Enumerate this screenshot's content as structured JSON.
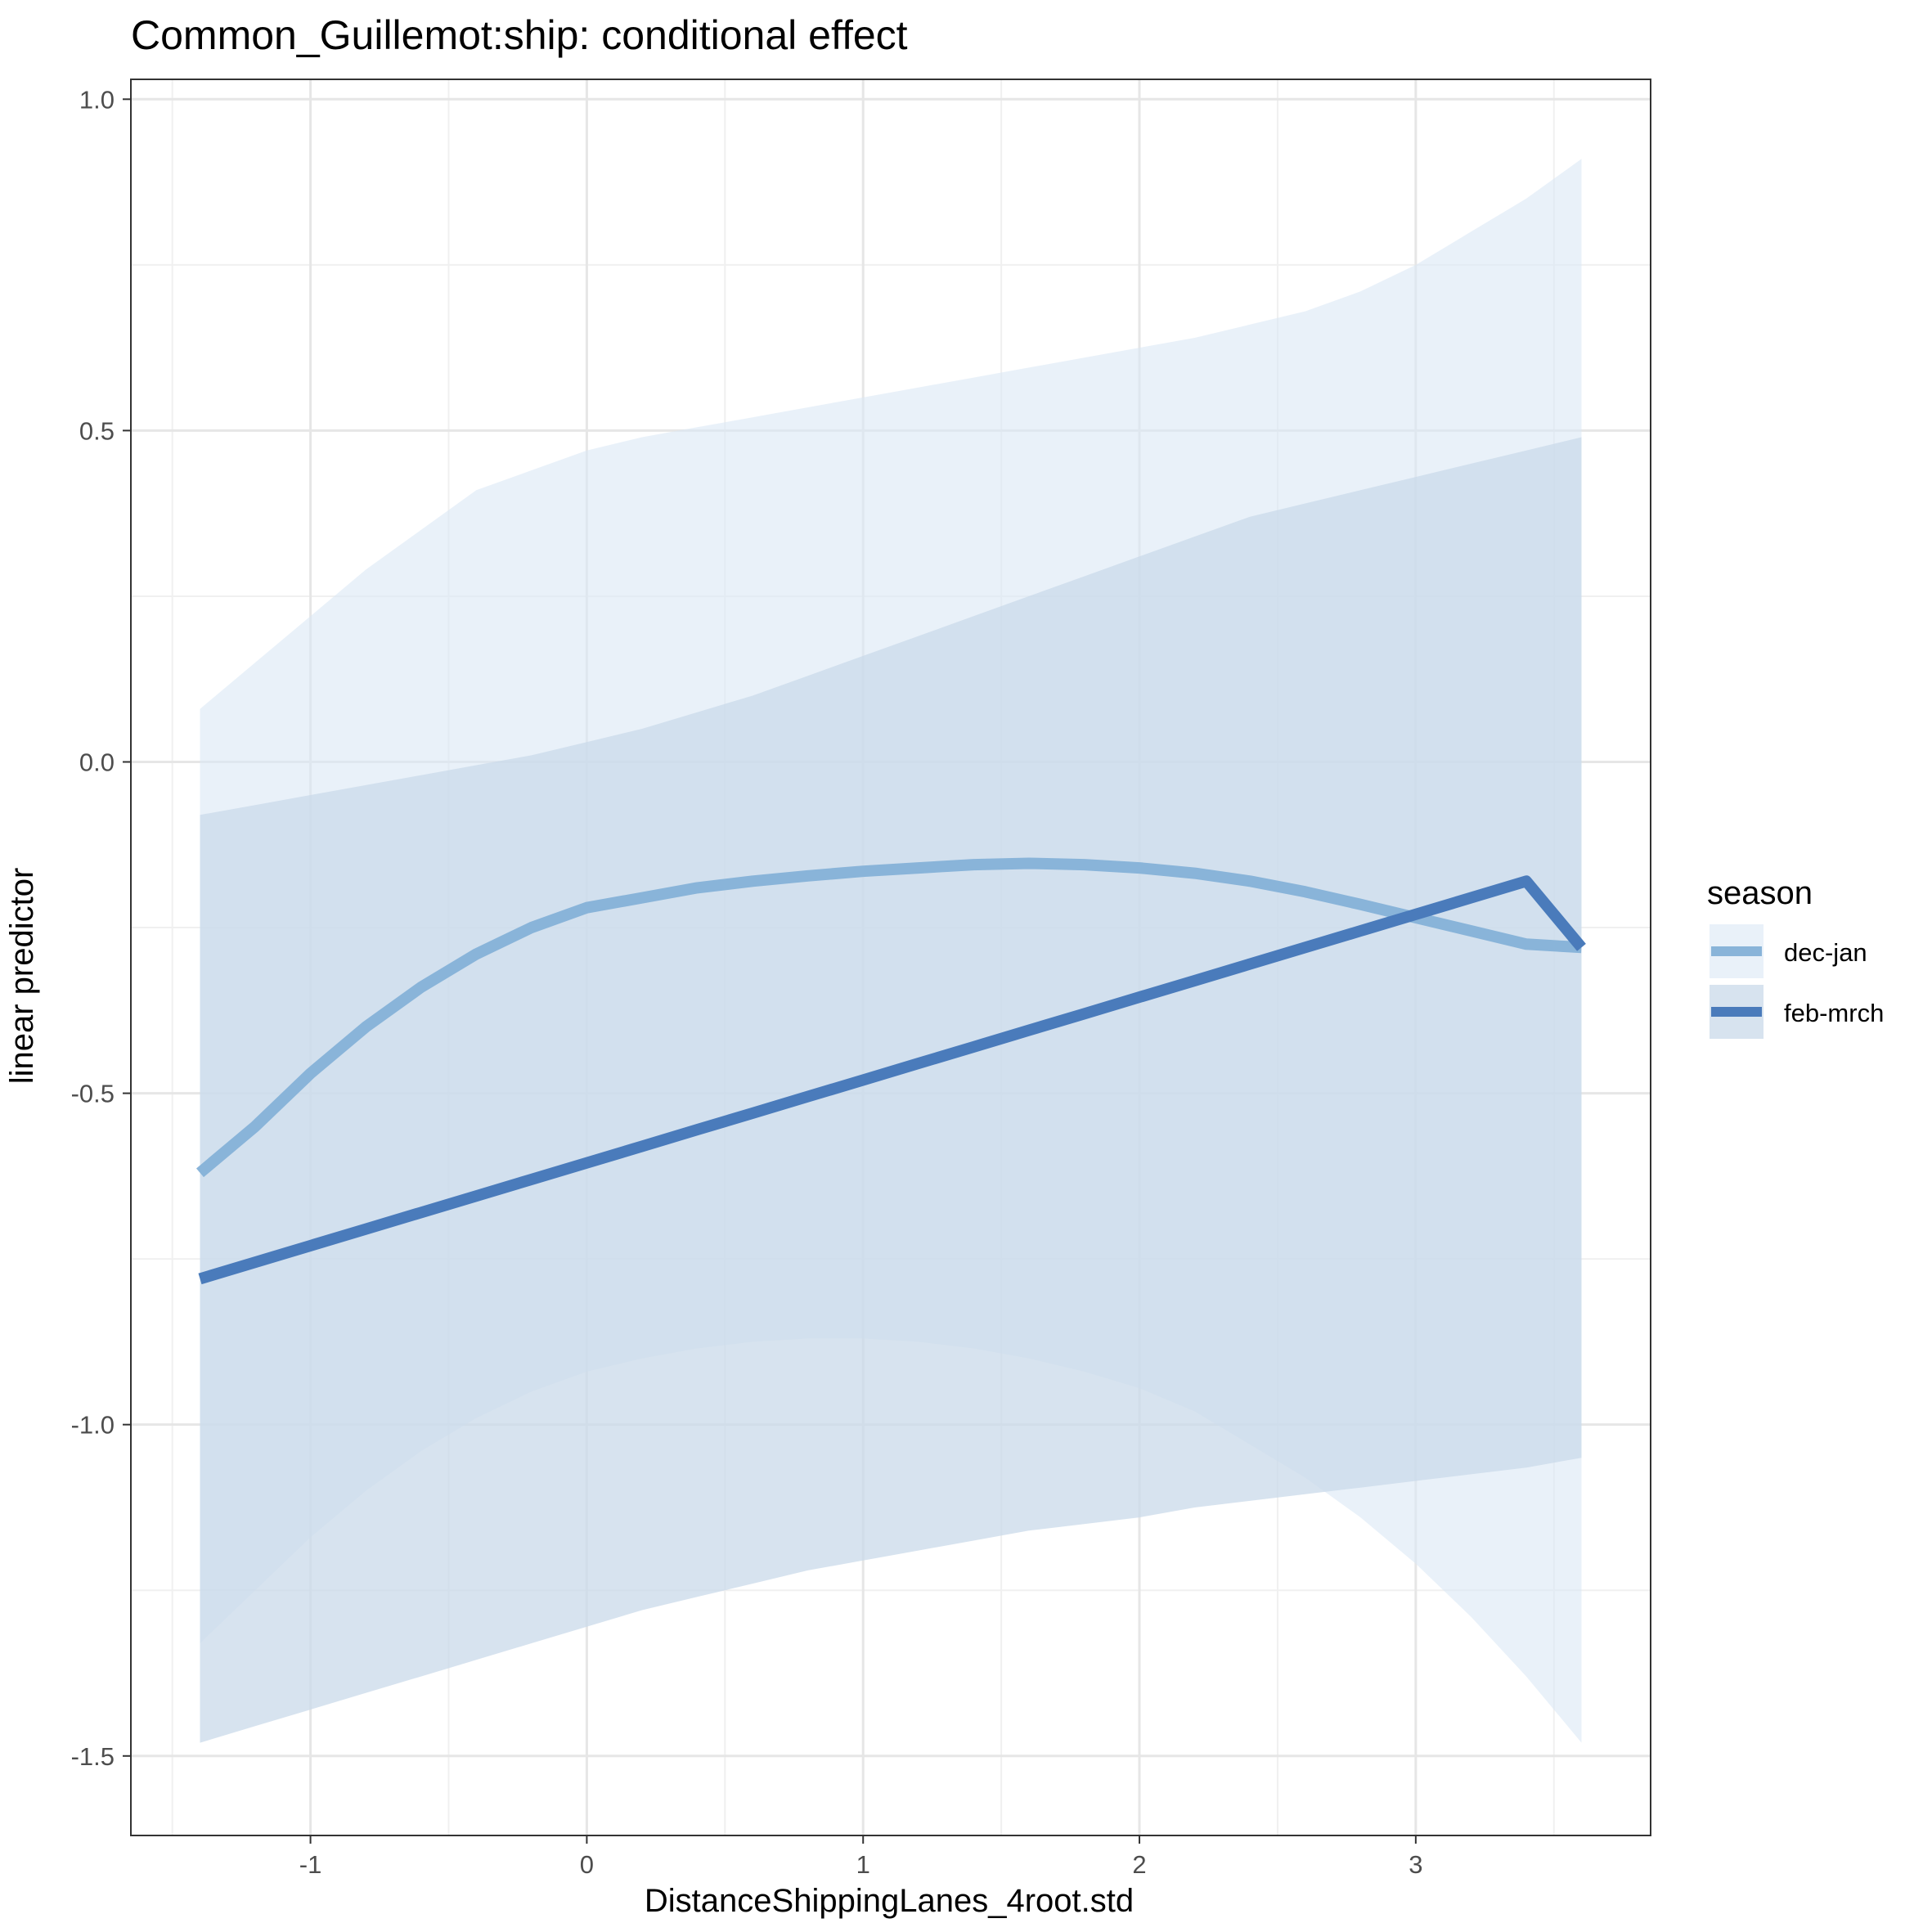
{
  "chart_data": {
    "type": "line",
    "title": "Common_Guillemot:ship: conditional effect",
    "xlabel": "DistanceShippingLanes_4root.std",
    "ylabel": "linear predictor",
    "xlim": [
      -1.65,
      3.85
    ],
    "ylim": [
      -1.62,
      1.03
    ],
    "x_ticks": [
      -1,
      0,
      1,
      2,
      3
    ],
    "x_tick_labels": [
      "-1",
      "0",
      "1",
      "2",
      "3"
    ],
    "y_ticks": [
      -1.5,
      -1.0,
      -0.5,
      0.0,
      0.5,
      1.0
    ],
    "y_tick_labels": [
      "-1.5",
      "-1.0",
      "-0.5",
      "0.0",
      "0.5",
      "1.0"
    ],
    "grid": true,
    "legend": {
      "title": "season",
      "position": "right"
    },
    "series": [
      {
        "name": "dec-jan",
        "color": "#89b4d9",
        "band_color": "#dbe7f5",
        "x": [
          -1.4,
          -1.2,
          -1.0,
          -0.8,
          -0.6,
          -0.4,
          -0.2,
          0.0,
          0.2,
          0.4,
          0.6,
          0.8,
          1.0,
          1.2,
          1.4,
          1.6,
          1.8,
          2.0,
          2.2,
          2.4,
          2.6,
          2.8,
          3.0,
          3.2,
          3.4,
          3.6
        ],
        "y": [
          -0.62,
          -0.55,
          -0.47,
          -0.4,
          -0.34,
          -0.29,
          -0.25,
          -0.22,
          -0.205,
          -0.19,
          -0.18,
          -0.172,
          -0.165,
          -0.16,
          -0.155,
          -0.153,
          -0.155,
          -0.16,
          -0.168,
          -0.18,
          -0.196,
          -0.215,
          -0.235,
          -0.255,
          -0.275,
          -0.28
        ],
        "lower": [
          -1.33,
          -1.25,
          -1.17,
          -1.1,
          -1.04,
          -0.99,
          -0.95,
          -0.92,
          -0.9,
          -0.885,
          -0.875,
          -0.87,
          -0.87,
          -0.875,
          -0.885,
          -0.9,
          -0.92,
          -0.945,
          -0.98,
          -1.03,
          -1.08,
          -1.14,
          -1.21,
          -1.29,
          -1.38,
          -1.48
        ],
        "upper": [
          0.08,
          0.15,
          0.22,
          0.29,
          0.35,
          0.41,
          0.44,
          0.47,
          0.49,
          0.505,
          0.52,
          0.535,
          0.55,
          0.565,
          0.58,
          0.595,
          0.61,
          0.625,
          0.64,
          0.66,
          0.68,
          0.71,
          0.75,
          0.8,
          0.85,
          0.91
        ]
      },
      {
        "name": "feb-mrch",
        "color": "#4a7bbb",
        "band_color": "#c9d9e9",
        "x": [
          -1.4,
          -1.2,
          -1.0,
          -0.8,
          -0.6,
          -0.4,
          -0.2,
          0.0,
          0.2,
          0.4,
          0.6,
          0.8,
          1.0,
          1.2,
          1.4,
          1.6,
          1.8,
          2.0,
          2.2,
          2.4,
          2.6,
          2.8,
          3.0,
          3.2,
          3.4,
          3.6
        ],
        "y": [
          -0.78,
          -0.755,
          -0.73,
          -0.705,
          -0.68,
          -0.655,
          -0.63,
          -0.605,
          -0.58,
          -0.555,
          -0.53,
          -0.505,
          -0.48,
          -0.455,
          -0.43,
          -0.405,
          -0.38,
          -0.355,
          -0.33,
          -0.305,
          -0.28,
          -0.255,
          -0.23,
          -0.205,
          -0.18,
          -0.28
        ],
        "lower": [
          -1.48,
          -1.455,
          -1.43,
          -1.405,
          -1.38,
          -1.355,
          -1.33,
          -1.305,
          -1.28,
          -1.26,
          -1.24,
          -1.22,
          -1.205,
          -1.19,
          -1.175,
          -1.16,
          -1.15,
          -1.14,
          -1.125,
          -1.115,
          -1.105,
          -1.095,
          -1.085,
          -1.075,
          -1.065,
          -1.05
        ],
        "upper": [
          -0.08,
          -0.065,
          -0.05,
          -0.035,
          -0.02,
          -0.005,
          0.01,
          0.03,
          0.05,
          0.075,
          0.1,
          0.13,
          0.16,
          0.19,
          0.22,
          0.25,
          0.28,
          0.31,
          0.34,
          0.37,
          0.39,
          0.41,
          0.43,
          0.45,
          0.47,
          0.49
        ]
      }
    ]
  }
}
